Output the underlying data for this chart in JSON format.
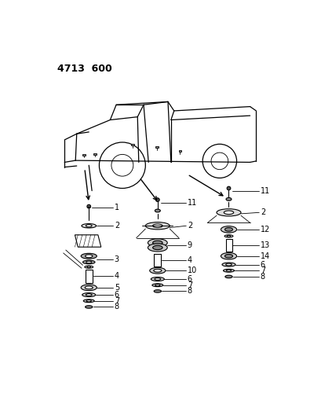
{
  "title": "4713  600",
  "background_color": "#ffffff",
  "line_color": "#000000",
  "title_fontsize": 9,
  "title_fontweight": "bold",
  "fig_width": 4.1,
  "fig_height": 5.33,
  "dpi": 100
}
